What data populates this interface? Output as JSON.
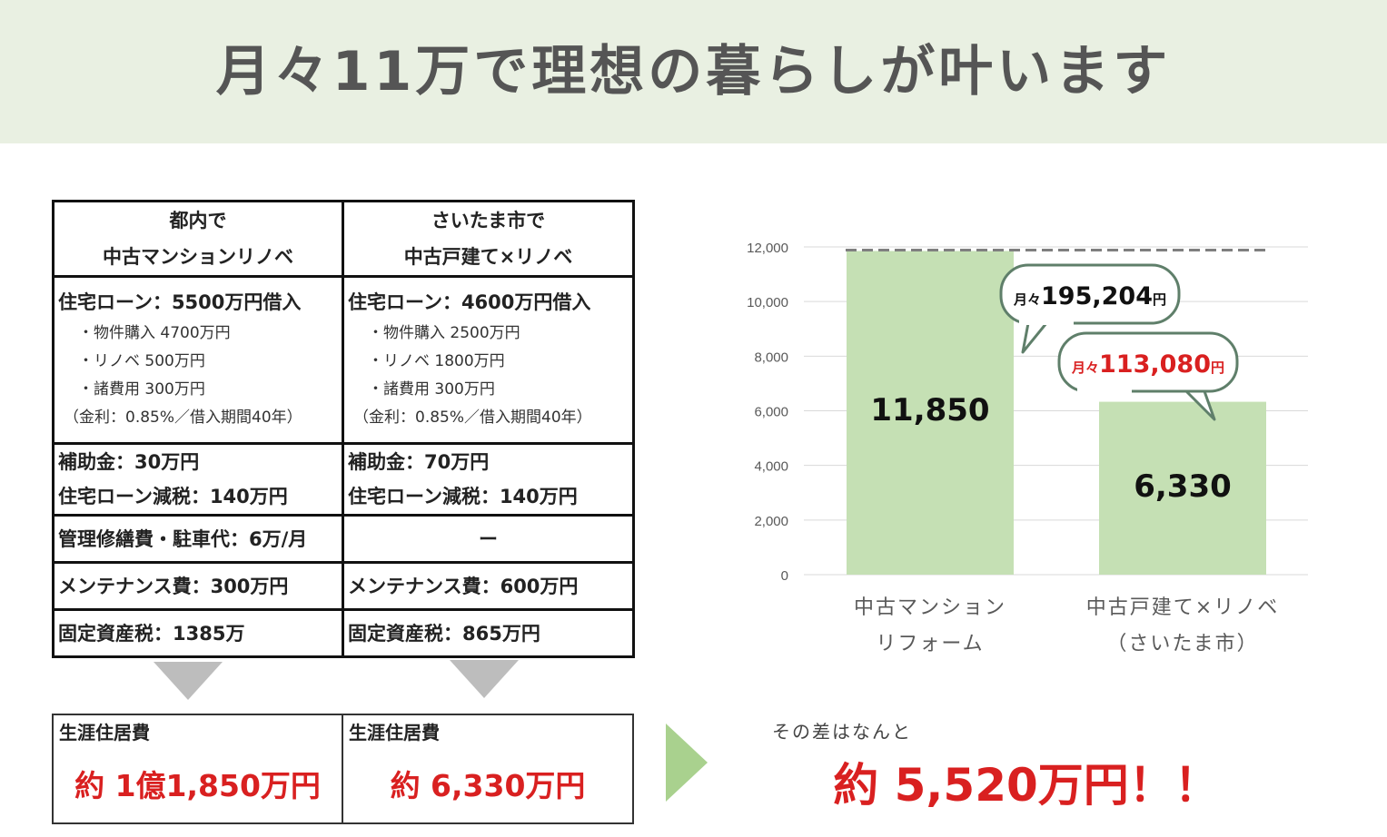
{
  "header": {
    "title": "月々11万で理想の暮らしが叶います"
  },
  "comparison": {
    "columns": [
      {
        "head1": "都内で",
        "head2": "中古マンションリノベ",
        "loan": "住宅ローン：5500万円借入",
        "items": [
          "・物件購入 4700万円",
          "・リノベ 500万円",
          "・諸費用 300万円"
        ],
        "rate": "（金利：0.85%／借入期間40年）",
        "subsidy": "補助金：30万円",
        "tax_cut": "住宅ローン減税：140万円",
        "management": "管理修繕費・駐車代：6万/月",
        "maintenance": "メンテナンス費：300万円",
        "property_tax": "固定資産税：1385万",
        "total_label": "生涯住居費",
        "total_value": "約 1億1,850万円"
      },
      {
        "head1": "さいたま市で",
        "head2": "中古戸建て×リノベ",
        "loan": "住宅ローン：4600万円借入",
        "items": [
          "・物件購入 2500万円",
          "・リノベ 1800万円",
          "・諸費用 300万円"
        ],
        "rate": "（金利：0.85%／借入期間40年）",
        "subsidy": "補助金：70万円",
        "tax_cut": "住宅ローン減税：140万円",
        "management": "ー",
        "maintenance": "メンテナンス費：600万円",
        "property_tax": "固定資産税：865万円",
        "total_label": "生涯住居費",
        "total_value": "約 6,330万円"
      }
    ]
  },
  "summary": {
    "diff_label": "その差はなんと",
    "diff_value": "約 5,520万円！！"
  },
  "chart_data": {
    "type": "bar",
    "categories": [
      [
        "中古マンション",
        "リフォーム"
      ],
      [
        "中古戸建て×リノベ",
        "（さいたま市）"
      ]
    ],
    "values": [
      11850,
      6330
    ],
    "data_labels": [
      "11,850",
      "6,330"
    ],
    "ylim": [
      0,
      12000
    ],
    "yticks": [
      0,
      2000,
      4000,
      6000,
      8000,
      10000,
      12000
    ],
    "ytick_labels": [
      "0",
      "2,000",
      "4,000",
      "6,000",
      "8,000",
      "10,000",
      "12,000"
    ],
    "reference_line": 11850,
    "grid": true,
    "bar_color": "#c5e0b4",
    "callouts": [
      {
        "prefix": "月々",
        "value": "195,204",
        "suffix": "円",
        "color": "#111111"
      },
      {
        "prefix": "月々",
        "value": "113,080",
        "suffix": "円",
        "color": "#d92020"
      }
    ]
  }
}
